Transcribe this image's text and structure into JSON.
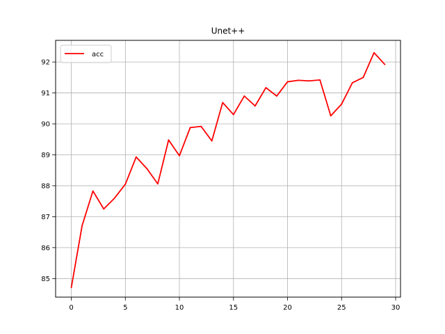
{
  "chart_data": {
    "type": "line",
    "title": "Unet++",
    "xlabel": "",
    "ylabel": "",
    "xlim": [
      -1.45,
      30.45
    ],
    "ylim": [
      84.4,
      92.7
    ],
    "xticks": [
      0,
      5,
      10,
      15,
      20,
      25,
      30
    ],
    "yticks": [
      85,
      86,
      87,
      88,
      89,
      90,
      91,
      92
    ],
    "grid": true,
    "legend": {
      "placement": "top-left",
      "entries": [
        "acc"
      ]
    },
    "series": [
      {
        "name": "acc",
        "color": "#ff0000",
        "x": [
          0,
          1,
          2,
          3,
          4,
          5,
          6,
          7,
          8,
          9,
          10,
          11,
          12,
          13,
          14,
          15,
          16,
          17,
          18,
          19,
          20,
          21,
          22,
          23,
          24,
          25,
          26,
          27,
          28,
          29
        ],
        "y": [
          84.71,
          86.71,
          87.83,
          87.25,
          87.6,
          88.05,
          88.93,
          88.55,
          88.06,
          89.48,
          88.97,
          89.88,
          89.92,
          89.45,
          90.69,
          90.3,
          90.9,
          90.58,
          91.17,
          90.9,
          91.36,
          91.41,
          91.39,
          91.42,
          90.26,
          90.64,
          91.33,
          91.5,
          92.3,
          91.92
        ]
      }
    ]
  }
}
